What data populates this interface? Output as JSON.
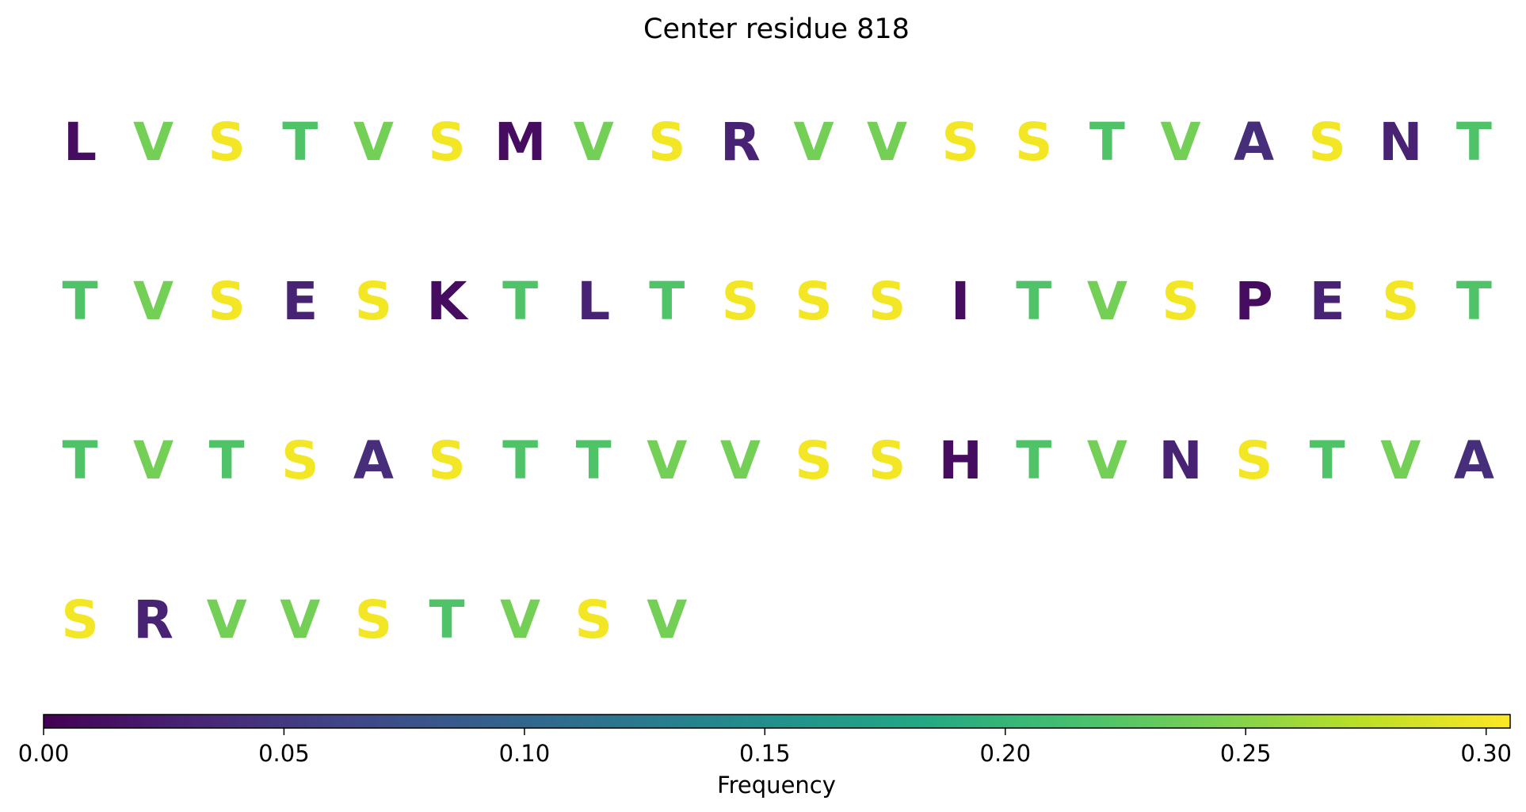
{
  "chart_data": {
    "type": "heatmap",
    "title": "Center residue 818",
    "residues": [
      {
        "letter": "L",
        "value": 0.01
      },
      {
        "letter": "V",
        "value": 0.24
      },
      {
        "letter": "S",
        "value": 0.3
      },
      {
        "letter": "T",
        "value": 0.22
      },
      {
        "letter": "V",
        "value": 0.24
      },
      {
        "letter": "S",
        "value": 0.3
      },
      {
        "letter": "M",
        "value": 0.01
      },
      {
        "letter": "V",
        "value": 0.24
      },
      {
        "letter": "S",
        "value": 0.3
      },
      {
        "letter": "R",
        "value": 0.03
      },
      {
        "letter": "V",
        "value": 0.24
      },
      {
        "letter": "V",
        "value": 0.24
      },
      {
        "letter": "S",
        "value": 0.3
      },
      {
        "letter": "S",
        "value": 0.3
      },
      {
        "letter": "T",
        "value": 0.22
      },
      {
        "letter": "V",
        "value": 0.24
      },
      {
        "letter": "A",
        "value": 0.04
      },
      {
        "letter": "S",
        "value": 0.3
      },
      {
        "letter": "N",
        "value": 0.03
      },
      {
        "letter": "T",
        "value": 0.22
      },
      {
        "letter": "T",
        "value": 0.22
      },
      {
        "letter": "V",
        "value": 0.24
      },
      {
        "letter": "S",
        "value": 0.3
      },
      {
        "letter": "E",
        "value": 0.03
      },
      {
        "letter": "S",
        "value": 0.3
      },
      {
        "letter": "K",
        "value": 0.01
      },
      {
        "letter": "T",
        "value": 0.22
      },
      {
        "letter": "L",
        "value": 0.03
      },
      {
        "letter": "T",
        "value": 0.22
      },
      {
        "letter": "S",
        "value": 0.3
      },
      {
        "letter": "S",
        "value": 0.3
      },
      {
        "letter": "S",
        "value": 0.3
      },
      {
        "letter": "I",
        "value": 0.01
      },
      {
        "letter": "T",
        "value": 0.22
      },
      {
        "letter": "V",
        "value": 0.24
      },
      {
        "letter": "S",
        "value": 0.3
      },
      {
        "letter": "P",
        "value": 0.01
      },
      {
        "letter": "E",
        "value": 0.03
      },
      {
        "letter": "S",
        "value": 0.3
      },
      {
        "letter": "T",
        "value": 0.22
      },
      {
        "letter": "T",
        "value": 0.22
      },
      {
        "letter": "V",
        "value": 0.24
      },
      {
        "letter": "T",
        "value": 0.22
      },
      {
        "letter": "S",
        "value": 0.3
      },
      {
        "letter": "A",
        "value": 0.04
      },
      {
        "letter": "S",
        "value": 0.3
      },
      {
        "letter": "T",
        "value": 0.22
      },
      {
        "letter": "T",
        "value": 0.22
      },
      {
        "letter": "V",
        "value": 0.24
      },
      {
        "letter": "V",
        "value": 0.24
      },
      {
        "letter": "S",
        "value": 0.3
      },
      {
        "letter": "S",
        "value": 0.3
      },
      {
        "letter": "H",
        "value": 0.01
      },
      {
        "letter": "T",
        "value": 0.22
      },
      {
        "letter": "V",
        "value": 0.24
      },
      {
        "letter": "N",
        "value": 0.03
      },
      {
        "letter": "S",
        "value": 0.3
      },
      {
        "letter": "T",
        "value": 0.22
      },
      {
        "letter": "V",
        "value": 0.24
      },
      {
        "letter": "A",
        "value": 0.04
      },
      {
        "letter": "S",
        "value": 0.3
      },
      {
        "letter": "R",
        "value": 0.03
      },
      {
        "letter": "V",
        "value": 0.24
      },
      {
        "letter": "V",
        "value": 0.24
      },
      {
        "letter": "S",
        "value": 0.3
      },
      {
        "letter": "T",
        "value": 0.22
      },
      {
        "letter": "V",
        "value": 0.24
      },
      {
        "letter": "S",
        "value": 0.3
      },
      {
        "letter": "V",
        "value": 0.24
      }
    ],
    "colorbar": {
      "label": "Frequency",
      "range": [
        0.0,
        0.305
      ],
      "ticks": [
        {
          "value": 0.0,
          "label": "0.00"
        },
        {
          "value": 0.05,
          "label": "0.05"
        },
        {
          "value": 0.1,
          "label": "0.10"
        },
        {
          "value": 0.15,
          "label": "0.15"
        },
        {
          "value": 0.2,
          "label": "0.20"
        },
        {
          "value": 0.25,
          "label": "0.25"
        },
        {
          "value": 0.3,
          "label": "0.30"
        }
      ],
      "colormap": "viridis"
    }
  }
}
